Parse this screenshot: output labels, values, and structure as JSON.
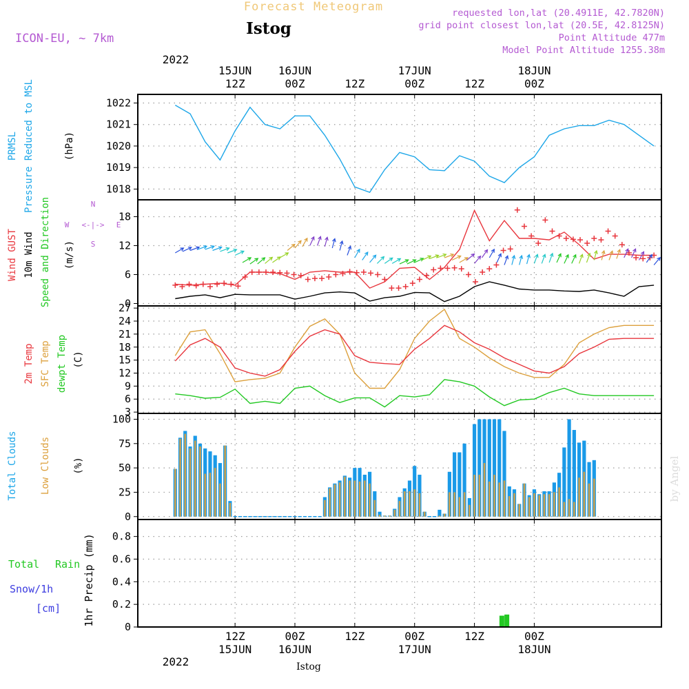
{
  "header": {
    "product": "Forecast Meteogram",
    "location": "Istog",
    "model": "ICON-EU, ~ 7km",
    "requested": "requested lon,lat (20.4911E, 42.7820N)",
    "grid_point": "grid point closest lon,lat (20.5E, 42.8125N)",
    "point_altitude": "Point Altitude 477m",
    "model_altitude": "Model Point Altitude 1255.38m",
    "footer_location": "Istog",
    "credit": "by Angel"
  },
  "time_axis": {
    "top_year": "2022",
    "top_labels": [
      [
        "15JUN",
        "12Z"
      ],
      [
        "16JUN",
        "00Z"
      ],
      [
        "",
        "12Z"
      ],
      [
        "17JUN",
        "00Z"
      ],
      [
        "",
        "12Z"
      ],
      [
        "18JUN",
        "00Z"
      ]
    ],
    "bottom_labels": [
      [
        "12Z",
        "15JUN"
      ],
      [
        "00Z",
        "16JUN"
      ],
      [
        "12Z",
        ""
      ],
      [
        "00Z",
        "17JUN"
      ],
      [
        "12Z",
        ""
      ],
      [
        "00Z",
        "18JUN"
      ]
    ],
    "bottom_year": "2022"
  },
  "panels": {
    "pressure": {
      "labels": [
        "PRMSL",
        "Pressure Reduced to MSL"
      ],
      "unit": "(hPa)"
    },
    "wind": {
      "labels": [
        "Wind GUST",
        "10m Wind",
        "Speed and Direction"
      ],
      "unit": "(m/s)",
      "compass": {
        "n": "N",
        "s": "S",
        "e": "E",
        "w": "W",
        "rose": "<-|->"
      }
    },
    "temp": {
      "labels": [
        "2m Temp",
        "SFC Temp",
        "dewpt Temp"
      ],
      "unit": "(C)"
    },
    "clouds": {
      "labels": [
        "Total Clouds",
        "Low Clouds"
      ],
      "unit": "(%)"
    },
    "precip": {
      "labels": [
        "Total",
        "Rain",
        "Snow/1h",
        "[cm]"
      ],
      "unit": "1hr Precip (mm)"
    }
  },
  "colors": {
    "pressure": "#1ca6e8",
    "gust": "#e8353c",
    "wind": "#000000",
    "temp2m": "#e8353c",
    "sfc": "#dca03c",
    "dew": "#22c822",
    "total_clouds": "#1a9ae8",
    "low_clouds": "#c8a050",
    "rain": "#22c822",
    "snow": "#3c3ce0",
    "model": "#b45ad2",
    "title_gold": "#f0c878"
  },
  "chart_data": [
    {
      "type": "line",
      "title": "PRMSL",
      "ylabel": "(hPa)",
      "ylim": [
        1017.5,
        1022.4
      ],
      "yticks": [
        1018,
        1019,
        1020,
        1021,
        1022
      ],
      "x": [
        0,
        3,
        6,
        9,
        12,
        15,
        18,
        21,
        24,
        27,
        30,
        33,
        36,
        39,
        42,
        45,
        48,
        51,
        54,
        57,
        60,
        63,
        66,
        69,
        72,
        75,
        78,
        81,
        84,
        87,
        90,
        93,
        96
      ],
      "series": [
        {
          "values": [
            1021.9,
            1021.5,
            1020.2,
            1019.35,
            1020.7,
            1021.8,
            1021.0,
            1020.8,
            1021.4,
            1021.4,
            1020.5,
            1019.4,
            1018.1,
            1017.85,
            1018.9,
            1019.7,
            1019.5,
            1018.9,
            1018.85,
            1019.55,
            1019.3,
            1018.6,
            1018.3,
            1019.0,
            1019.5,
            1020.5,
            1020.8,
            1020.95,
            1020.95,
            1021.2,
            1021.0,
            1020.5,
            1020.0
          ]
        }
      ]
    },
    {
      "type": "line",
      "title": "Wind",
      "ylabel": "(m/s)",
      "ylim": [
        -0.5,
        21.5
      ],
      "yticks": [
        0,
        6,
        12,
        18
      ],
      "x": [
        0,
        3,
        6,
        9,
        12,
        15,
        18,
        21,
        24,
        27,
        30,
        33,
        36,
        39,
        42,
        45,
        48,
        51,
        54,
        57,
        60,
        63,
        66,
        69,
        72,
        75,
        78,
        81,
        84,
        87,
        90,
        93,
        96
      ],
      "series": [
        {
          "name": "Wind GUST",
          "values": [
            4.0,
            3.8,
            4.0,
            4.2,
            3.8,
            6.5,
            6.5,
            6.2,
            5.0,
            6.5,
            6.8,
            6.5,
            6.5,
            3.2,
            4.5,
            7.3,
            7.5,
            5.0,
            7.5,
            11.2,
            19.3,
            13.0,
            17.2,
            13.5,
            13.5,
            13.2,
            14.8,
            12.2,
            9.2,
            10.2,
            10.2,
            10.0,
            10.0
          ],
          "markers": [
            3.8,
            3.5,
            4.0,
            3.7,
            4.0,
            3.5,
            4.0,
            4.2,
            4.0,
            3.6,
            5.5,
            6.5,
            6.5,
            6.5,
            6.5,
            6.4,
            6.3,
            6.0,
            5.8,
            5.0,
            5.2,
            5.2,
            5.5,
            6.0,
            6.2,
            6.6,
            6.4,
            6.5,
            6.3,
            6.0,
            5.0,
            3.2,
            3.2,
            3.5,
            4.2,
            5.0,
            5.8,
            7.0,
            7.3,
            7.3,
            7.4,
            7.2,
            6.0,
            4.5,
            6.5,
            7.2,
            8.0,
            11.0,
            11.3,
            19.4,
            16.0,
            14.0,
            12.5,
            17.3,
            15.0,
            14.0,
            13.5,
            13.3,
            13.2,
            12.5,
            13.5,
            13.2,
            15.0,
            14.0,
            12.2,
            10.5,
            9.5,
            9.3,
            9.5,
            10.0
          ],
          "marker_x": [
            0,
            1.4,
            2.8,
            4.2,
            5.6,
            7.0,
            8.4,
            9.8,
            11.2,
            12.6,
            14.0,
            15.4,
            16.8,
            18.2,
            19.6,
            21.0,
            22.4,
            23.8,
            25.2,
            26.6,
            28.0,
            29.4,
            30.8,
            32.2,
            33.6,
            35.0,
            36.4,
            37.8,
            39.2,
            40.6,
            42.0,
            43.4,
            44.8,
            46.2,
            47.6,
            49.0,
            50.4,
            51.8,
            53.2,
            54.6,
            56.0,
            57.4,
            58.8,
            60.2,
            61.6,
            63.0,
            64.4,
            65.8,
            67.2,
            68.6,
            70.0,
            71.4,
            72.8,
            74.2,
            75.6,
            77.0,
            78.4,
            79.8,
            81.2,
            82.6,
            84.0,
            85.4,
            86.8,
            88.2,
            89.6,
            91.0,
            92.4,
            93.8,
            95.2,
            96.0
          ]
        },
        {
          "name": "10m Wind",
          "values": [
            1.0,
            1.5,
            1.8,
            1.2,
            1.9,
            1.8,
            1.8,
            1.8,
            0.9,
            1.5,
            2.2,
            2.4,
            2.2,
            0.5,
            1.2,
            1.5,
            2.3,
            2.2,
            0.4,
            1.5,
            3.5,
            4.5,
            3.8,
            3.0,
            2.8,
            2.8,
            2.6,
            2.5,
            2.8,
            2.2,
            1.5,
            3.5,
            3.8
          ]
        },
        {
          "name": "Wind direction",
          "sample_x": [
            0.0,
            1.5,
            3.0,
            4.5,
            6.0,
            7.5,
            9.0,
            10.5,
            12.0,
            13.5,
            15.0,
            16.5,
            18.0,
            19.5,
            21.0,
            22.5,
            24.0,
            25.5,
            27.0,
            28.5,
            30.0,
            31.5,
            33.0,
            34.5,
            36.0,
            37.5,
            39.0,
            40.5,
            42.0,
            43.5,
            45.0,
            46.5,
            48.0,
            49.5,
            51.0,
            52.5,
            54.0,
            55.5,
            57.0,
            58.5,
            60.0,
            61.5,
            63.0,
            64.5,
            66.0,
            67.5,
            69.0,
            70.5,
            72.0,
            73.5,
            75.0,
            76.5,
            78.0,
            79.5,
            81.0,
            82.5,
            84.0,
            85.5,
            87.0,
            88.5,
            90.0,
            91.5,
            93.0,
            94.5,
            96.0
          ],
          "dir_deg": [
            240,
            245,
            250,
            250,
            250,
            250,
            250,
            250,
            245,
            240,
            235,
            230,
            230,
            235,
            240,
            230,
            220,
            210,
            205,
            200,
            195,
            195,
            195,
            200,
            210,
            215,
            220,
            225,
            235,
            240,
            245,
            245,
            245,
            245,
            250,
            250,
            250,
            245,
            240,
            230,
            220,
            215,
            210,
            205,
            200,
            195,
            195,
            195,
            200,
            200,
            200,
            205,
            205,
            205,
            200,
            200,
            195,
            195,
            200,
            200,
            205,
            205,
            210,
            215,
            220
          ],
          "speed": [
            10.5,
            10.8,
            11.0,
            11.2,
            11.2,
            11.0,
            10.8,
            10.5,
            10.0,
            8.5,
            8.2,
            8.2,
            8.3,
            8.5,
            9.5,
            11.0,
            11.5,
            11.8,
            12.0,
            12.0,
            11.8,
            11.5,
            11.0,
            10.0,
            9.5,
            9.0,
            8.5,
            8.3,
            8.3,
            8.3,
            8.2,
            8.2,
            8.5,
            9.0,
            9.3,
            9.5,
            9.5,
            9.0,
            8.5,
            9.0,
            8.3,
            9.5,
            9.5,
            8.5,
            8.0,
            8.0,
            8.0,
            8.2,
            8.3,
            8.3,
            8.5,
            8.5,
            8.3,
            8.3,
            8.3,
            8.5,
            9.0,
            9.0,
            9.0,
            9.3,
            9.5,
            9.5,
            9.0,
            8.5,
            8.0
          ]
        }
      ]
    },
    {
      "type": "line",
      "title": "Temperature",
      "ylabel": "(C)",
      "ylim": [
        2.7,
        27.5
      ],
      "yticks": [
        3,
        6,
        9,
        12,
        15,
        18,
        21,
        24,
        27
      ],
      "x": [
        0,
        3,
        6,
        9,
        12,
        15,
        18,
        21,
        24,
        27,
        30,
        33,
        36,
        39,
        42,
        45,
        48,
        51,
        54,
        57,
        60,
        63,
        66,
        69,
        72,
        75,
        78,
        81,
        84,
        87,
        90,
        93,
        96
      ],
      "series": [
        {
          "name": "2m Temp",
          "values": [
            14.8,
            18.5,
            20.0,
            18.0,
            13.2,
            12.0,
            11.3,
            12.8,
            17.0,
            20.5,
            22.0,
            21.0,
            16.0,
            14.5,
            14.2,
            14.0,
            17.5,
            20.0,
            23.0,
            21.5,
            19.0,
            17.5,
            15.5,
            14.0,
            12.5,
            12.0,
            13.5,
            16.5,
            18.0,
            19.8,
            20.0,
            20.0,
            20.0
          ]
        },
        {
          "name": "SFC Temp",
          "values": [
            16.0,
            21.5,
            22.0,
            16.5,
            10.0,
            10.5,
            10.8,
            12.0,
            18.0,
            22.8,
            24.5,
            21.0,
            12.0,
            8.5,
            8.5,
            12.8,
            20.0,
            24.0,
            26.7,
            20.0,
            18.0,
            15.5,
            13.5,
            12.0,
            11.0,
            11.0,
            14.0,
            19.0,
            21.0,
            22.5,
            23.0,
            23.0,
            23.0
          ]
        },
        {
          "name": "dewpt Temp",
          "values": [
            7.2,
            6.8,
            6.2,
            6.4,
            8.3,
            5.0,
            5.5,
            5.0,
            8.5,
            9.0,
            6.8,
            5.2,
            6.3,
            6.3,
            4.2,
            6.8,
            6.5,
            7.0,
            10.5,
            10.0,
            9.0,
            6.5,
            4.5,
            5.8,
            6.0,
            7.5,
            8.5,
            7.2,
            6.8,
            6.8,
            6.8,
            6.8,
            6.8
          ]
        }
      ]
    },
    {
      "type": "bar",
      "title": "Clouds",
      "ylabel": "(%)",
      "ylim": [
        -3,
        106
      ],
      "yticks": [
        0,
        25,
        50,
        75,
        100
      ],
      "x_start_hour": 0,
      "bar_step_hour": 1,
      "series": [
        {
          "name": "Total Clouds",
          "values": [
            49,
            81,
            88,
            72,
            83,
            75,
            70,
            67,
            63,
            55,
            73,
            16,
            0,
            0,
            0,
            0,
            0,
            0,
            0,
            0,
            0,
            0,
            0,
            0,
            0,
            0,
            0,
            0,
            0,
            0,
            20,
            30,
            34,
            37,
            42,
            40,
            50,
            50,
            43,
            46,
            26,
            5,
            1,
            1,
            8,
            20,
            29,
            37,
            52,
            43,
            5,
            0,
            0,
            7,
            3,
            46,
            66,
            66,
            75,
            19,
            95,
            100,
            100,
            100,
            100,
            100,
            88,
            31,
            28,
            13,
            34,
            22,
            28,
            23,
            26,
            26,
            35,
            45,
            71,
            100,
            89,
            76,
            78,
            56,
            58
          ]
        },
        {
          "name": "Low Clouds",
          "values": [
            49,
            80,
            85,
            70,
            78,
            72,
            44,
            45,
            50,
            34,
            73,
            14,
            0,
            0,
            0,
            0,
            0,
            0,
            0,
            0,
            0,
            0,
            0,
            0,
            0,
            0,
            0,
            0,
            0,
            0,
            17,
            29,
            33,
            35,
            41,
            37,
            37,
            36,
            37,
            34,
            17,
            2,
            1,
            1,
            7,
            16,
            26,
            26,
            28,
            24,
            5,
            0,
            0,
            1,
            3,
            25,
            25,
            20,
            25,
            12,
            43,
            43,
            55,
            36,
            43,
            35,
            37,
            21,
            24,
            13,
            34,
            20,
            24,
            22,
            23,
            23,
            25,
            30,
            15,
            18,
            15,
            40,
            46,
            34,
            39
          ]
        }
      ]
    },
    {
      "type": "bar",
      "title": "1hr Precip",
      "ylabel": "1hr Precip (mm)",
      "ylim": [
        0,
        0.95
      ],
      "yticks": [
        0,
        0.2,
        0.4,
        0.6,
        0.8
      ],
      "series": [
        {
          "name": "Rain",
          "bars": [
            [
              65.5,
              0.1
            ],
            [
              66.5,
              0.11
            ]
          ]
        }
      ]
    }
  ]
}
